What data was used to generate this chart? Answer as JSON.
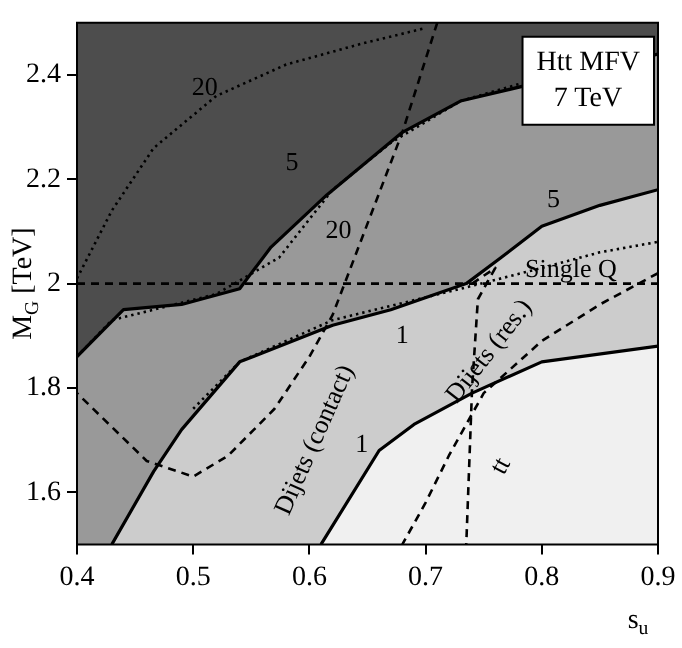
{
  "chart_data": {
    "type": "line",
    "xlabel": "s$_{u}$",
    "ylabel": "M$_{G}$ [TeV]",
    "xlim": [
      0.4,
      0.9
    ],
    "xticks": [
      0.4,
      0.5,
      0.6,
      0.7,
      0.8,
      0.9
    ],
    "ylim": [
      1.5,
      2.5
    ],
    "yticks": [
      1.6,
      1.8,
      2,
      2.2,
      2.4
    ],
    "grid": false,
    "legend": false,
    "marker": "none",
    "bands": [
      {
        "axis": "y",
        "from": 1.86,
        "to": 2.5,
        "color": "#4d4d4d"
      }
    ],
    "series": [
      {
        "type": "area",
        "color": "#999999",
        "x": [
          0.4,
          0.44,
          0.49,
          0.54,
          0.55,
          0.567,
          0.615,
          0.68,
          0.73,
          0.78,
          0.85,
          0.9
        ],
        "values": [
          1.86,
          1.95,
          1.96,
          1.99,
          2.02,
          2.07,
          2.17,
          2.29,
          2.35,
          null,
          null,
          2.44
        ]
      },
      {
        "type": "area",
        "color": "#cccccc",
        "x": [
          0.43,
          0.466,
          0.49,
          0.54,
          0.62,
          0.67,
          0.735,
          0.765,
          0.8,
          0.85,
          0.9
        ],
        "values": [
          1.5,
          1.64,
          1.72,
          1.85,
          1.92,
          1.95,
          2.0,
          2.05,
          2.11,
          2.15,
          2.18
        ]
      },
      {
        "type": "area",
        "color": "#f0f0f0",
        "x": [
          0.61,
          0.66,
          0.69,
          0.74,
          0.8,
          0.9
        ],
        "values": [
          1.5,
          1.68,
          1.73,
          1.79,
          1.85,
          1.88
        ]
      },
      {
        "type": "line",
        "line_style": "dotted",
        "color": "#000000",
        "x": [
          0.4,
          0.43,
          0.466,
          0.52,
          0.58,
          0.645,
          0.7
        ],
        "values": [
          2.01,
          2.14,
          2.26,
          2.36,
          2.42,
          2.46,
          2.49
        ]
      },
      {
        "type": "line",
        "line_style": "dotted",
        "color": "#000000",
        "x": [
          0.4,
          0.43,
          0.52,
          0.574,
          0.62,
          0.67,
          0.73,
          0.79,
          0.9
        ],
        "values": [
          1.86,
          1.93,
          1.98,
          2.05,
          2.18,
          2.27,
          2.35,
          null,
          2.46
        ]
      },
      {
        "type": "line",
        "line_style": "dotted",
        "color": "#000000",
        "x": [
          0.5,
          0.54,
          0.62,
          0.73,
          0.8,
          0.85,
          0.9
        ],
        "values": [
          1.76,
          1.85,
          1.93,
          1.99,
          2.03,
          2.06,
          2.08
        ]
      },
      {
        "type": "line",
        "line_style": "dashed",
        "color": "#000000",
        "x": [
          0.71,
          0.68,
          0.62,
          0.6,
          0.57,
          0.53,
          0.5,
          0.46,
          0.4
        ],
        "values": [
          2.5,
          2.29,
          1.94,
          1.86,
          1.76,
          1.67,
          1.63,
          1.66,
          1.79
        ]
      },
      {
        "type": "line",
        "line_style": "dashed",
        "color": "#000000",
        "x": [
          0.9,
          0.85,
          0.8,
          0.75,
          0.72,
          0.7,
          0.68
        ],
        "values": [
          2.02,
          1.96,
          1.89,
          1.79,
          1.67,
          1.58,
          1.5
        ]
      },
      {
        "type": "line",
        "line_style": "dashed",
        "color": "#000000",
        "x": [
          0.74,
          0.76,
          0.745,
          0.74,
          0.735
        ],
        "values": [
          2.0,
          2.03,
          1.97,
          1.8,
          1.5
        ]
      },
      {
        "type": "line",
        "line_style": "dashed",
        "color": "#000000",
        "x": [
          0.4,
          0.9
        ],
        "values": [
          2.0,
          2.0
        ]
      }
    ],
    "annotations": [
      "20",
      "5",
      "20",
      "5",
      "Single Q",
      "1",
      "1",
      "Dijets (contact)",
      "Dijets (res.)",
      "tt",
      "Htt MFV\n7 TeV"
    ]
  }
}
